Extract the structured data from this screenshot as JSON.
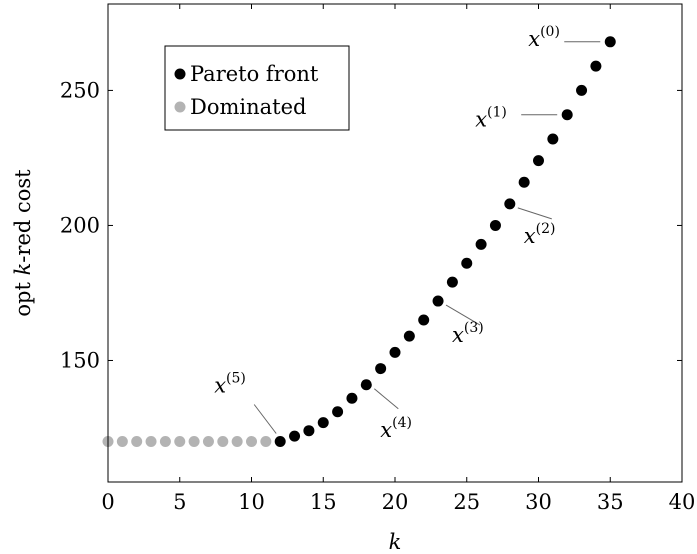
{
  "chart_data": {
    "type": "scatter",
    "xlabel": "k",
    "ylabel_prefix": "opt ",
    "ylabel_var": "k",
    "ylabel_suffix": "-red cost",
    "xlim": [
      0,
      40
    ],
    "ylim": [
      105,
      282
    ],
    "xticks": [
      0,
      5,
      10,
      15,
      20,
      25,
      30,
      35,
      40
    ],
    "yticks": [
      150,
      200,
      250
    ],
    "grid": false,
    "legend_position": "top-left",
    "colors": {
      "pareto": "#000000",
      "dominated": "#b3b3b3"
    },
    "series": [
      {
        "name": "Pareto front",
        "key": "pareto",
        "x": [
          12,
          13,
          14,
          15,
          16,
          17,
          18,
          19,
          20,
          21,
          22,
          23,
          24,
          25,
          26,
          27,
          28,
          29,
          30,
          31,
          32,
          33,
          34,
          35
        ],
        "y": [
          120,
          122,
          124,
          127,
          131,
          136,
          141,
          147,
          153,
          159,
          165,
          172,
          179,
          186,
          193,
          200,
          208,
          216,
          224,
          232,
          241,
          250,
          259,
          268
        ]
      },
      {
        "name": "Dominated",
        "key": "dominated",
        "x": [
          0,
          1,
          2,
          3,
          4,
          5,
          6,
          7,
          8,
          9,
          10,
          11
        ],
        "y": [
          120,
          120,
          120,
          120,
          120,
          120,
          120,
          120,
          120,
          120,
          120,
          120
        ]
      }
    ],
    "annotations": [
      {
        "base": "x",
        "sup": "(0)",
        "point": [
          35,
          268
        ]
      },
      {
        "base": "x",
        "sup": "(1)",
        "point": [
          32,
          241
        ]
      },
      {
        "base": "x",
        "sup": "(2)",
        "point": [
          28,
          208
        ]
      },
      {
        "base": "x",
        "sup": "(3)",
        "point": [
          23,
          172
        ]
      },
      {
        "base": "x",
        "sup": "(4)",
        "point": [
          18,
          141
        ]
      },
      {
        "base": "x",
        "sup": "(5)",
        "point": [
          12,
          120
        ]
      }
    ]
  }
}
